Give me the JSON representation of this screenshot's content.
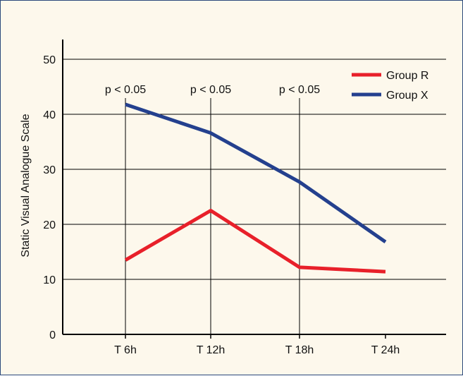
{
  "chart_data": {
    "type": "line",
    "ylabel": "Static Visual Analogue Scale",
    "categories": [
      "T 6h",
      "T 12h",
      "T 18h",
      "T 24h"
    ],
    "ylim": [
      0,
      50
    ],
    "yticks": [
      0,
      10,
      20,
      30,
      40,
      50
    ],
    "grid": true,
    "legend_position": "top-right",
    "series": [
      {
        "name": "Group R",
        "color": "#e8202a",
        "values": [
          13.5,
          22.5,
          12.2,
          11.4
        ]
      },
      {
        "name": "Group X",
        "color": "#24408e",
        "values": [
          41.8,
          36.6,
          27.7,
          16.8
        ]
      }
    ],
    "annotations": [
      "p < 0.05",
      "p < 0.05",
      "p < 0.05"
    ]
  }
}
